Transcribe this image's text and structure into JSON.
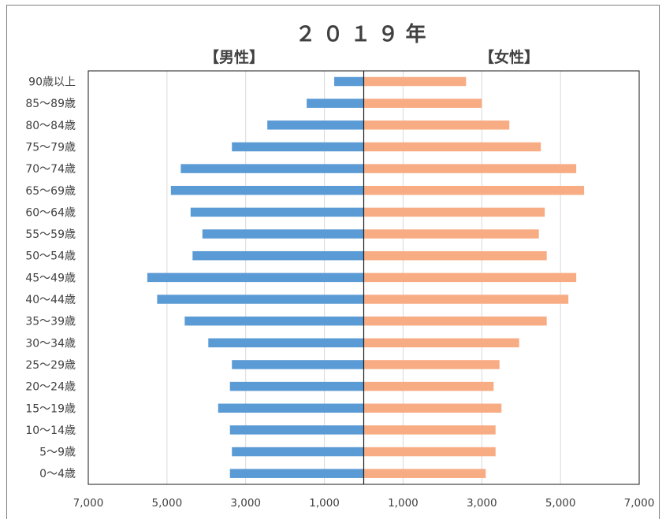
{
  "chart_data": {
    "type": "bar",
    "title": "２０１９年",
    "male_label": "【男性】",
    "female_label": "【女性】",
    "categories": [
      "90歳以上",
      "85～89歳",
      "80～84歳",
      "75～79歳",
      "70～74歳",
      "65～69歳",
      "60～64歳",
      "55～59歳",
      "50～54歳",
      "45～49歳",
      "40～44歳",
      "35～39歳",
      "30～34歳",
      "25～29歳",
      "20～24歳",
      "15～19歳",
      "10～14歳",
      "5～9歳",
      "0～4歳"
    ],
    "series": [
      {
        "name": "【男性】",
        "color": "#5b9bd5",
        "values": [
          750,
          1450,
          2450,
          3350,
          4650,
          4900,
          4400,
          4100,
          4350,
          5500,
          5250,
          4550,
          3950,
          3350,
          3400,
          3700,
          3400,
          3350,
          3400
        ]
      },
      {
        "name": "【女性】",
        "color": "#f8ac84",
        "values": [
          2600,
          3000,
          3700,
          4500,
          5400,
          5600,
          4600,
          4450,
          4650,
          5400,
          5200,
          4650,
          3950,
          3450,
          3300,
          3500,
          3350,
          3350,
          3100
        ]
      }
    ],
    "xlim": [
      -7000,
      7000
    ],
    "xticks": [
      -7000,
      -5000,
      -3000,
      -1000,
      1000,
      3000,
      5000,
      7000
    ],
    "xtick_labels": [
      "7,000",
      "5,000",
      "3,000",
      "1,000",
      "1,000",
      "3,000",
      "5,000",
      "7,000"
    ],
    "grid": true
  }
}
